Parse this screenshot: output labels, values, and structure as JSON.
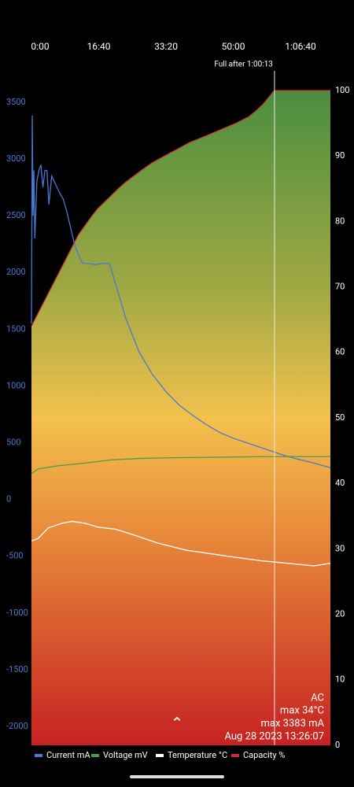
{
  "chart_data": {
    "type": "line",
    "xticks": [
      {
        "value": 0,
        "label": "0:00"
      },
      {
        "value": 1000,
        "label": "16:40"
      },
      {
        "value": 2000,
        "label": "33:20"
      },
      {
        "value": 3000,
        "label": "50:00"
      },
      {
        "value": 4000,
        "label": "1:06:40"
      }
    ],
    "xlim": [
      0,
      4444
    ],
    "ylim": [
      -2166,
      3604
    ],
    "yticks": [
      3500,
      3000,
      2500,
      2000,
      1500,
      1000,
      500,
      0,
      -500,
      -1000,
      -1500,
      -2000
    ],
    "y2lim": [
      0,
      100
    ],
    "y2ticks": [
      100,
      90,
      80,
      70,
      60,
      50,
      40,
      30,
      20,
      10,
      0
    ],
    "full_marker": {
      "x": 3613,
      "label": "Full after 1:00:13"
    },
    "info": [
      "AC",
      "max 34°C",
      "max 3383 mA",
      "Aug 28 2023 13:26:07"
    ],
    "series": [
      {
        "name": "Current mA",
        "color": "#4a78d0",
        "axis": "y",
        "x": [
          0,
          12,
          24,
          36,
          50,
          80,
          110,
          140,
          170,
          200,
          230,
          260,
          300,
          340,
          380,
          420,
          470,
          520,
          580,
          640,
          700,
          760,
          850,
          950,
          1050,
          1160,
          1250,
          1400,
          1600,
          1800,
          2000,
          2200,
          2400,
          2600,
          2800,
          3000,
          3200,
          3400,
          3600,
          3800,
          4000,
          4200,
          4444
        ],
        "values": [
          1550,
          3383,
          2500,
          2900,
          2300,
          2800,
          2900,
          2950,
          2750,
          2900,
          2900,
          2600,
          2850,
          2800,
          2750,
          2700,
          2650,
          2550,
          2400,
          2250,
          2150,
          2080,
          2080,
          2070,
          2080,
          2080,
          1900,
          1600,
          1300,
          1100,
          950,
          830,
          740,
          660,
          590,
          540,
          500,
          460,
          420,
          380,
          350,
          320,
          280
        ]
      },
      {
        "name": "Voltage mV",
        "color": "#4f9a4a",
        "axis": "y2",
        "x": [
          0,
          100,
          400,
          800,
          1200,
          1600,
          2000,
          2800,
          3600,
          4444
        ],
        "values": [
          41.5,
          42.2,
          42.7,
          43.1,
          43.6,
          43.8,
          43.9,
          44.0,
          44.1,
          44.1
        ]
      },
      {
        "name": "Temperature °C",
        "color": "#ffffff",
        "axis": "y2",
        "x": [
          0,
          100,
          250,
          450,
          600,
          800,
          1000,
          1250,
          1500,
          1871,
          2300,
          2700,
          3041,
          3400,
          3800,
          4200,
          4444
        ],
        "values": [
          31.2,
          31.6,
          33.2,
          33.9,
          34.2,
          33.9,
          33.3,
          33.0,
          32.2,
          30.9,
          29.8,
          29.2,
          28.7,
          28.2,
          27.8,
          27.4,
          27.8
        ]
      },
      {
        "name": "Capacity %",
        "color": "#d03030",
        "axis": "y2",
        "area": true,
        "x": [
          0,
          50,
          100,
          150,
          200,
          250,
          300,
          350,
          400,
          450,
          500,
          550,
          600,
          650,
          700,
          770,
          840,
          910,
          990,
          1090,
          1190,
          1290,
          1400,
          1530,
          1660,
          1800,
          1980,
          2160,
          2340,
          2580,
          2810,
          3040,
          3230,
          3350,
          3450,
          3530,
          3610,
          4444
        ],
        "values": [
          64,
          65,
          66,
          67,
          68,
          69,
          70,
          71,
          72,
          73,
          74,
          75,
          76,
          77,
          78,
          79,
          80,
          81,
          82,
          83,
          84,
          85,
          86,
          87,
          88,
          89,
          90,
          91,
          92,
          93,
          94,
          95,
          96,
          97,
          98,
          99,
          100,
          100
        ]
      }
    ]
  }
}
